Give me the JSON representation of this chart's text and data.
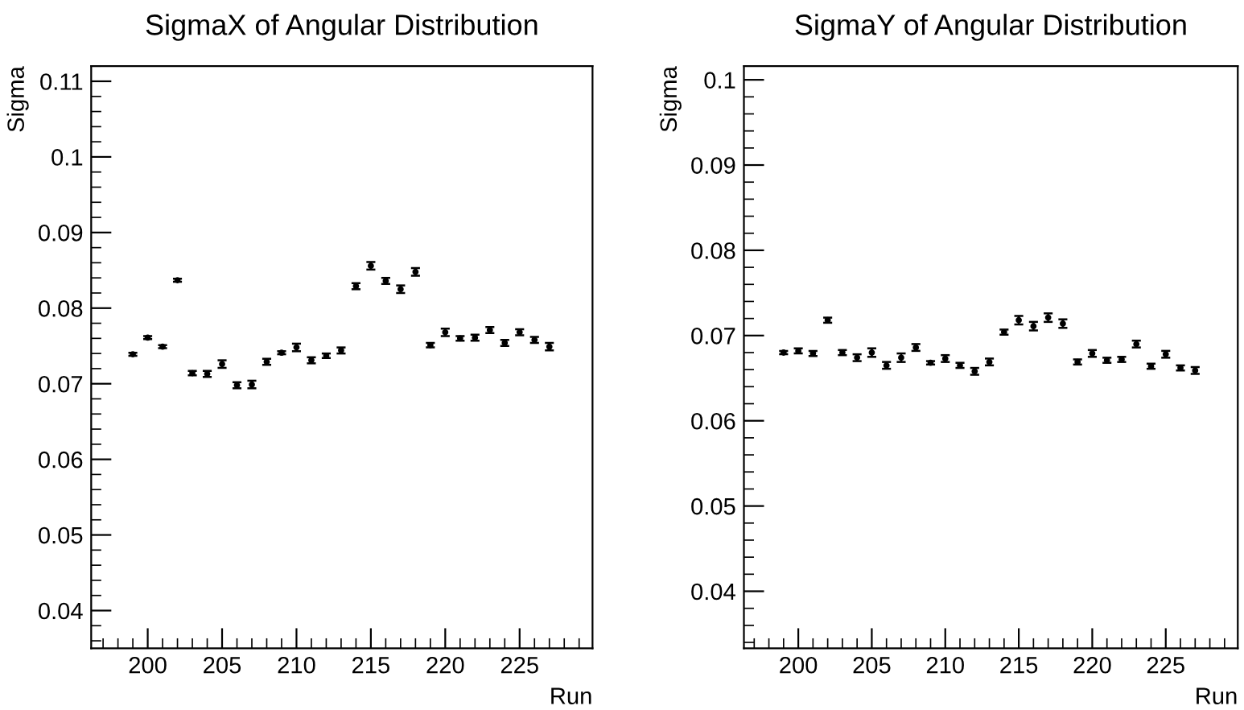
{
  "chart_data": [
    {
      "type": "scatter",
      "title": "SigmaX of Angular Distribution",
      "xlabel": "Run",
      "ylabel": "Sigma",
      "marker": "circle",
      "grid": false,
      "legend": false,
      "xlim": [
        196.2,
        229.9
      ],
      "ylim": [
        0.035,
        0.112
      ],
      "xticks": [
        200,
        205,
        210,
        215,
        220,
        225
      ],
      "yticks": [
        0.04,
        0.05,
        0.06,
        0.07,
        0.08,
        0.09,
        0.1,
        0.11
      ],
      "x": [
        199,
        200,
        201,
        202,
        203,
        204,
        205,
        206,
        207,
        208,
        209,
        210,
        211,
        212,
        213,
        214,
        215,
        216,
        217,
        218,
        219,
        220,
        221,
        222,
        223,
        224,
        225,
        226,
        227
      ],
      "series": [
        {
          "color": "#000000",
          "values": [
            0.0739,
            0.0761,
            0.0749,
            0.0837,
            0.0714,
            0.0713,
            0.0726,
            0.0698,
            0.0699,
            0.0729,
            0.0741,
            0.0748,
            0.0731,
            0.0737,
            0.0744,
            0.0829,
            0.0856,
            0.0836,
            0.0825,
            0.0848,
            0.0751,
            0.0768,
            0.076,
            0.0761,
            0.0771,
            0.0754,
            0.0768,
            0.0758,
            0.0749
          ],
          "errors": [
            0.0002,
            0.0002,
            0.0002,
            0.0002,
            0.0003,
            0.0004,
            0.0005,
            0.0004,
            0.0005,
            0.0004,
            0.0002,
            0.0005,
            0.0004,
            0.0003,
            0.0004,
            0.0004,
            0.0005,
            0.0004,
            0.0005,
            0.0005,
            0.0003,
            0.0005,
            0.0003,
            0.0004,
            0.0004,
            0.0004,
            0.0004,
            0.0004,
            0.0005
          ]
        }
      ]
    },
    {
      "type": "scatter",
      "title": "SigmaY of Angular Distribution",
      "xlabel": "Run",
      "ylabel": "Sigma",
      "marker": "circle",
      "grid": false,
      "legend": false,
      "xlim": [
        196.3,
        229.9
      ],
      "ylim": [
        0.0333,
        0.1016
      ],
      "xticks": [
        200,
        205,
        210,
        215,
        220,
        225
      ],
      "yticks": [
        0.04,
        0.05,
        0.06,
        0.07,
        0.08,
        0.09,
        0.1
      ],
      "x": [
        199,
        200,
        201,
        202,
        203,
        204,
        205,
        206,
        207,
        208,
        209,
        210,
        211,
        212,
        213,
        214,
        215,
        216,
        217,
        218,
        219,
        220,
        221,
        222,
        223,
        224,
        225,
        226,
        227
      ],
      "series": [
        {
          "color": "#000000",
          "values": [
            0.068,
            0.0682,
            0.0679,
            0.0718,
            0.068,
            0.0674,
            0.068,
            0.0665,
            0.0674,
            0.0686,
            0.0668,
            0.0673,
            0.0665,
            0.0658,
            0.0669,
            0.0704,
            0.0718,
            0.0711,
            0.0721,
            0.0714,
            0.0669,
            0.0679,
            0.0671,
            0.0672,
            0.069,
            0.0664,
            0.0678,
            0.0662,
            0.0659
          ],
          "errors": [
            0.0002,
            0.0003,
            0.0003,
            0.0003,
            0.0003,
            0.0004,
            0.0005,
            0.0004,
            0.0005,
            0.0004,
            0.0002,
            0.0004,
            0.0003,
            0.0004,
            0.0004,
            0.0003,
            0.0005,
            0.0005,
            0.0005,
            0.0005,
            0.0003,
            0.0004,
            0.0003,
            0.0003,
            0.0004,
            0.0003,
            0.0004,
            0.0003,
            0.0004
          ]
        }
      ]
    }
  ]
}
